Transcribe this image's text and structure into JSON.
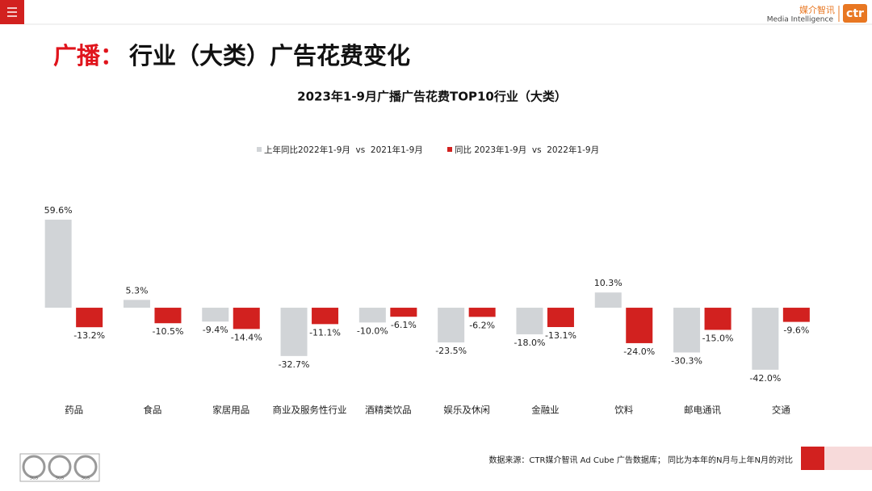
{
  "header": {
    "title_red": "广播：",
    "title_black": "行业（大类）广告花费变化",
    "logo_cn": "媒介智讯",
    "logo_en": "Media Intelligence",
    "logo_mark": "ctr"
  },
  "footer": {
    "source": "数据来源：CTR媒介智讯 Ad Cube 广告数据库； 同比为本年的N月与上年N月的对比",
    "badges": [
      "SGS",
      "SGS",
      "SGS"
    ]
  },
  "chart_data": {
    "type": "bar",
    "title": "2023年1-9月广播广告花费TOP10行业（大类）",
    "categories": [
      "药品",
      "食品",
      "家居用品",
      "商业及服务性行业",
      "酒精类饮品",
      "娱乐及休闲",
      "金融业",
      "饮料",
      "邮电通讯",
      "交通"
    ],
    "ylim": [
      -50,
      70
    ],
    "legend": "top",
    "series": [
      {
        "name": "上年同比2022年1-9月  vs  2021年1-9月",
        "color": "#d1d4d7",
        "values": [
          59.6,
          5.3,
          -9.4,
          -32.7,
          -10.0,
          -23.5,
          -18.0,
          10.3,
          -30.3,
          -42.0
        ],
        "value_labels": [
          "59.6%",
          "5.3%",
          "-9.4%",
          "-32.7%",
          "-10.0%",
          "-23.5%",
          "-18.0%",
          "10.3%",
          "-30.3%",
          "-42.0%"
        ]
      },
      {
        "name": "同比 2023年1-9月  vs  2022年1-9月",
        "color": "#d2211f",
        "values": [
          -13.2,
          -10.5,
          -14.4,
          -11.1,
          -6.1,
          -6.2,
          -13.1,
          -24.0,
          -15.0,
          -9.6
        ],
        "value_labels": [
          "-13.2%",
          "-10.5%",
          "-14.4%",
          "-11.1%",
          "-6.1%",
          "-6.2%",
          "-13.1%",
          "-24.0%",
          "-15.0%",
          "-9.6%"
        ]
      }
    ]
  }
}
